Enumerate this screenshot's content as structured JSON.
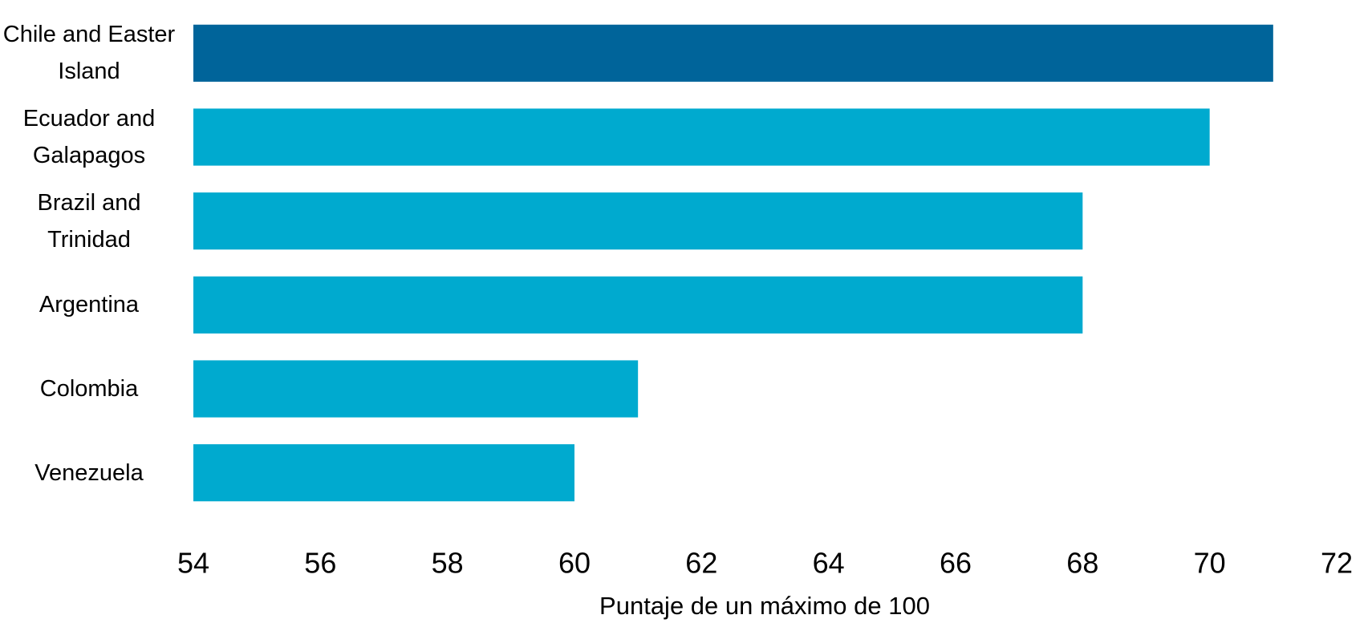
{
  "chart_data": {
    "type": "barh",
    "categories": [
      "Chile and Easter Island",
      "Ecuador and Galapagos",
      "Brazil and Trinidad",
      "Argentina",
      "Colombia",
      "Venezuela"
    ],
    "values": [
      71,
      70,
      68,
      68,
      61,
      60
    ],
    "colors": [
      "#00649a",
      "#00aacf",
      "#00aacf",
      "#00aacf",
      "#00aacf",
      "#00aacf"
    ],
    "xlabel": "Puntaje de un máximo de 100",
    "xlim": [
      54,
      72
    ],
    "xticks": [
      54,
      56,
      58,
      60,
      62,
      64,
      66,
      68,
      70,
      72
    ],
    "grid": false
  }
}
